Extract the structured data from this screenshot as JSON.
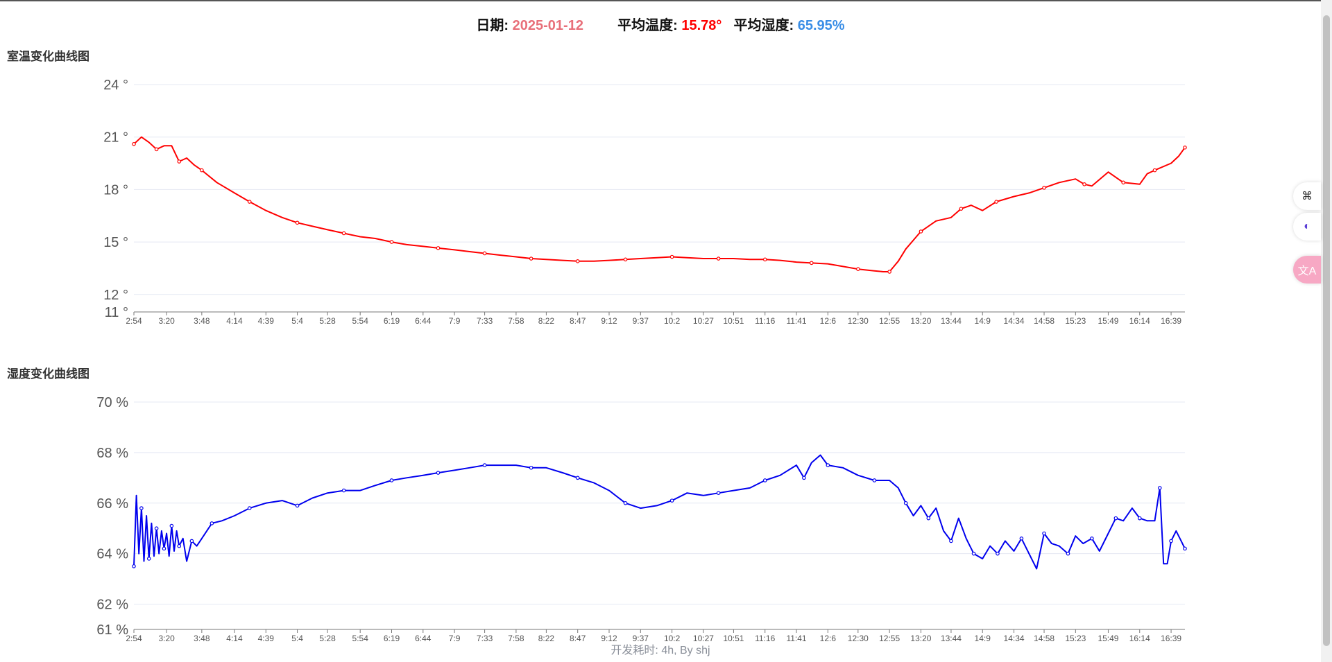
{
  "header": {
    "date_label": "日期:",
    "date_value": "2025-01-12",
    "avg_temp_label": "平均温度:",
    "avg_temp_value": "15.78°",
    "avg_humidity_label": "平均湿度:",
    "avg_humidity_value": "65.95%"
  },
  "colors": {
    "date": "#e8707a",
    "temperature": "#ff0000",
    "humidity": "#0000ee",
    "humidity_value": "#3a8ee6",
    "grid": "#e4e8f3"
  },
  "footer": {
    "text": "开发耗时: 4h, By shj"
  },
  "side_buttons": [
    {
      "icon": "apps-grid-icon",
      "glyph": "⌘"
    },
    {
      "icon": "assistant-face-icon",
      "glyph": "◐"
    },
    {
      "icon": "translate-icon",
      "glyph": "文A"
    }
  ],
  "chart_data": [
    {
      "type": "line",
      "title": "室温变化曲线图",
      "y_unit": " °",
      "yticks": [
        11,
        12,
        15,
        18,
        21,
        24
      ],
      "ylim": [
        11,
        24
      ],
      "xticks": [
        "2:54",
        "3:20",
        "3:48",
        "4:14",
        "4:39",
        "5:4",
        "5:28",
        "5:54",
        "6:19",
        "6:44",
        "7:9",
        "7:33",
        "7:58",
        "8:22",
        "8:47",
        "9:12",
        "9:37",
        "10:2",
        "10:27",
        "10:51",
        "11:16",
        "11:41",
        "12:6",
        "12:30",
        "12:55",
        "13:20",
        "13:44",
        "14:9",
        "14:34",
        "14:58",
        "15:23",
        "15:49",
        "16:14",
        "16:39"
      ],
      "grid": true,
      "series": [
        {
          "color": "#ff0000",
          "x": [
            "2:54",
            "3:00",
            "3:06",
            "3:12",
            "3:18",
            "3:24",
            "3:30",
            "3:36",
            "3:42",
            "3:48",
            "4:00",
            "4:14",
            "4:26",
            "4:39",
            "4:52",
            "5:04",
            "5:16",
            "5:28",
            "5:41",
            "5:54",
            "6:06",
            "6:19",
            "6:31",
            "6:44",
            "6:56",
            "7:09",
            "7:21",
            "7:33",
            "7:45",
            "7:58",
            "8:10",
            "8:22",
            "8:35",
            "8:47",
            "9:00",
            "9:12",
            "9:25",
            "9:37",
            "9:50",
            "10:02",
            "10:14",
            "10:27",
            "10:39",
            "10:51",
            "11:04",
            "11:16",
            "11:28",
            "11:41",
            "11:53",
            "12:06",
            "12:18",
            "12:30",
            "12:43",
            "12:50",
            "12:55",
            "13:02",
            "13:08",
            "13:20",
            "13:32",
            "13:44",
            "13:52",
            "14:00",
            "14:09",
            "14:20",
            "14:34",
            "14:46",
            "14:58",
            "15:10",
            "15:23",
            "15:30",
            "15:36",
            "15:49",
            "16:01",
            "16:14",
            "16:20",
            "16:26",
            "16:39",
            "16:45",
            "16:50"
          ],
          "y": [
            20.6,
            21.0,
            20.7,
            20.3,
            20.5,
            20.5,
            19.6,
            19.8,
            19.4,
            19.1,
            18.4,
            17.8,
            17.3,
            16.8,
            16.4,
            16.1,
            15.9,
            15.7,
            15.5,
            15.3,
            15.2,
            15.0,
            14.85,
            14.75,
            14.65,
            14.55,
            14.45,
            14.35,
            14.25,
            14.15,
            14.05,
            14.0,
            13.95,
            13.9,
            13.9,
            13.95,
            14.0,
            14.05,
            14.1,
            14.15,
            14.1,
            14.05,
            14.05,
            14.05,
            14.0,
            14.0,
            13.95,
            13.85,
            13.8,
            13.75,
            13.6,
            13.45,
            13.35,
            13.3,
            13.3,
            13.9,
            14.6,
            15.6,
            16.2,
            16.4,
            16.9,
            17.1,
            16.8,
            17.3,
            17.6,
            17.8,
            18.1,
            18.4,
            18.6,
            18.3,
            18.2,
            19.0,
            18.4,
            18.3,
            18.9,
            19.1,
            19.5,
            19.9,
            20.4
          ]
        }
      ]
    },
    {
      "type": "line",
      "title": "湿度变化曲线图",
      "y_unit": " %",
      "yticks": [
        61,
        62,
        64,
        66,
        68,
        70
      ],
      "ylim": [
        61,
        70
      ],
      "xticks": [
        "2:54",
        "3:20",
        "3:48",
        "4:14",
        "4:39",
        "5:4",
        "5:28",
        "5:54",
        "6:19",
        "6:44",
        "7:9",
        "7:33",
        "7:58",
        "8:22",
        "8:47",
        "9:12",
        "9:37",
        "10:2",
        "10:27",
        "10:51",
        "11:16",
        "11:41",
        "12:6",
        "12:30",
        "12:55",
        "13:20",
        "13:44",
        "14:9",
        "14:34",
        "14:58",
        "15:23",
        "15:49",
        "16:14",
        "16:39"
      ],
      "grid": true,
      "series": [
        {
          "color": "#0000ee",
          "x": [
            "2:54",
            "2:56",
            "2:58",
            "3:00",
            "3:02",
            "3:04",
            "3:06",
            "3:08",
            "3:10",
            "3:12",
            "3:14",
            "3:16",
            "3:18",
            "3:20",
            "3:22",
            "3:24",
            "3:26",
            "3:28",
            "3:30",
            "3:33",
            "3:36",
            "3:40",
            "3:44",
            "3:48",
            "3:56",
            "4:04",
            "4:14",
            "4:26",
            "4:39",
            "4:52",
            "5:04",
            "5:16",
            "5:28",
            "5:41",
            "5:54",
            "6:06",
            "6:19",
            "6:31",
            "6:44",
            "6:56",
            "7:09",
            "7:21",
            "7:33",
            "7:45",
            "7:58",
            "8:10",
            "8:22",
            "8:35",
            "8:47",
            "9:00",
            "9:12",
            "9:25",
            "9:37",
            "9:50",
            "10:02",
            "10:14",
            "10:27",
            "10:39",
            "10:51",
            "11:04",
            "11:16",
            "11:28",
            "11:41",
            "11:47",
            "11:53",
            "12:00",
            "12:06",
            "12:18",
            "12:30",
            "12:43",
            "12:55",
            "13:02",
            "13:08",
            "13:14",
            "13:20",
            "13:26",
            "13:32",
            "13:38",
            "13:44",
            "13:50",
            "13:56",
            "14:02",
            "14:09",
            "14:15",
            "14:21",
            "14:27",
            "14:34",
            "14:40",
            "14:46",
            "14:52",
            "14:58",
            "15:04",
            "15:10",
            "15:17",
            "15:23",
            "15:29",
            "15:36",
            "15:42",
            "15:49",
            "15:55",
            "16:01",
            "16:08",
            "16:14",
            "16:20",
            "16:26",
            "16:30",
            "16:33",
            "16:36",
            "16:39",
            "16:43",
            "16:47",
            "16:50"
          ],
          "y": [
            63.5,
            66.3,
            64.0,
            65.8,
            63.7,
            65.5,
            63.8,
            65.2,
            63.9,
            65.0,
            64.0,
            64.9,
            64.2,
            64.8,
            63.9,
            65.1,
            64.1,
            64.9,
            64.3,
            64.6,
            63.7,
            64.5,
            64.3,
            64.6,
            65.2,
            65.3,
            65.5,
            65.8,
            66.0,
            66.1,
            65.9,
            66.2,
            66.4,
            66.5,
            66.5,
            66.7,
            66.9,
            67.0,
            67.1,
            67.2,
            67.3,
            67.4,
            67.5,
            67.5,
            67.5,
            67.4,
            67.4,
            67.2,
            67.0,
            66.8,
            66.5,
            66.0,
            65.8,
            65.9,
            66.1,
            66.4,
            66.3,
            66.4,
            66.5,
            66.6,
            66.9,
            67.1,
            67.5,
            67.0,
            67.6,
            67.9,
            67.5,
            67.4,
            67.1,
            66.9,
            66.9,
            66.6,
            66.0,
            65.5,
            65.9,
            65.4,
            65.8,
            64.9,
            64.5,
            65.4,
            64.6,
            64.0,
            63.8,
            64.3,
            64.0,
            64.5,
            64.1,
            64.6,
            64.0,
            63.4,
            64.8,
            64.4,
            64.3,
            64.0,
            64.7,
            64.4,
            64.6,
            64.1,
            64.8,
            65.4,
            65.3,
            65.8,
            65.4,
            65.3,
            65.3,
            66.6,
            63.6,
            63.6,
            64.5,
            64.9,
            64.5,
            64.2
          ]
        }
      ]
    }
  ]
}
